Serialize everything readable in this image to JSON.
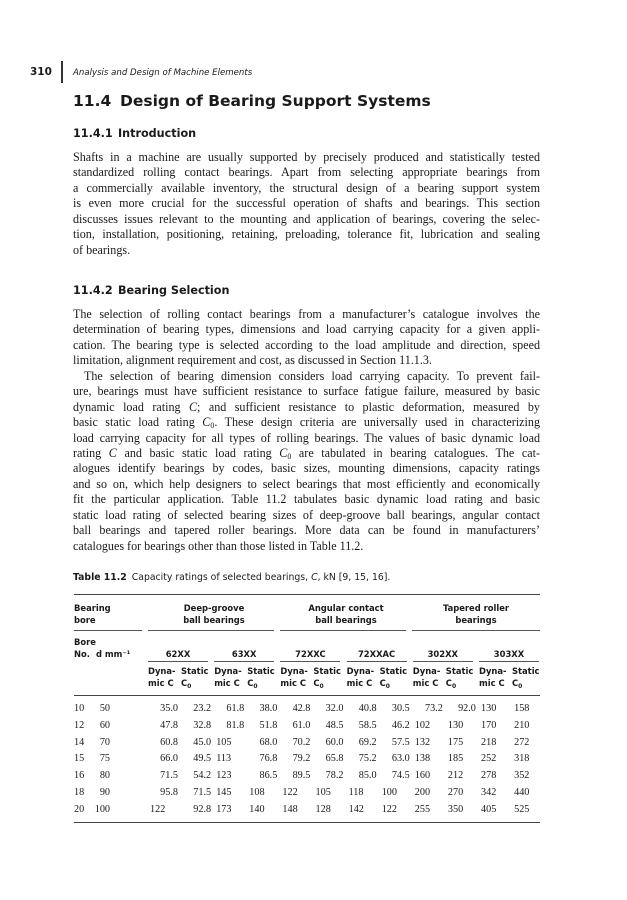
{
  "header": {
    "page_number": "310",
    "running_title": "Analysis and Design of Machine Elements"
  },
  "section": {
    "number": "11.4",
    "title": "Design of Bearing Support Systems"
  },
  "intro": {
    "number": "11.4.1",
    "title": "Introduction",
    "lines": [
      [
        "Shafts in a machine are usually supported by precisely produced and statistically tested"
      ],
      [
        "standardized rolling contact bearings. Apart from selecting appropriate bearings from"
      ],
      [
        "a commercially available inventory, the structural design of a bearing support system"
      ],
      [
        "is even more crucial for the successful operation of shafts and bearings. This section"
      ],
      [
        "discusses issues relevant to the mounting and application of bearings, covering the selec-"
      ],
      [
        "tion, installation, positioning, retaining, preloading, tolerance fit, lubrication and sealing"
      ],
      [
        "of bearings."
      ]
    ]
  },
  "selection": {
    "number": "11.4.2",
    "title": "Bearing Selection",
    "lines": [
      [
        "The selection of rolling contact bearings from a manufacturer’s catalogue involves the"
      ],
      [
        "determination of bearing types, dimensions and load carrying capacity for a given appli-"
      ],
      [
        "cation. The bearing type is selected according to the load amplitude and direction, speed"
      ],
      [
        "limitation, alignment requirement and cost, as discussed in Section 11.1.3."
      ],
      [
        "The selection of bearing dimension considers load carrying capacity. To prevent fail-"
      ],
      [
        "ure, bearings must have sufficient resistance to surface fatigue failure, measured by basic"
      ],
      [
        "dynamic load rating ",
        {
          "i": "C"
        },
        "; and sufficient resistance to plastic deformation, measured by"
      ],
      [
        "basic static load rating ",
        {
          "i": "C",
          "sub": "0"
        },
        ". These design criteria are universally used in characterizing"
      ],
      [
        "load carrying capacity for all types of rolling bearings. The values of basic dynamic load"
      ],
      [
        "rating ",
        {
          "i": "C"
        },
        " and basic static load rating ",
        {
          "i": "C",
          "sub": "0"
        },
        " are tabulated in bearing catalogues. The cat-"
      ],
      [
        "alogues identify bearings by codes, basic sizes, mounting dimensions, capacity ratings"
      ],
      [
        "and so on, which help designers to select bearings that most efficiently and economically"
      ],
      [
        "fit the particular application. Table 11.2 tabulates basic dynamic load rating and basic"
      ],
      [
        "static load rating of selected bearing sizes of deep-groove ball bearings, angular contact"
      ],
      [
        "ball bearings and tapered roller bearings. More data can be found in manufacturers’"
      ],
      [
        "catalogues for bearings other than those listed in Table 11.2."
      ]
    ]
  },
  "table": {
    "label": "Table 11.2",
    "caption_pre": "Capacity ratings of selected bearings, ",
    "caption_italic": "C",
    "caption_post": ", kN [9, 15, 16].",
    "group_headers": [
      "Bearing bore",
      "Deep-groove ball bearings",
      "Angular contact ball bearings",
      "Tapered roller bearings"
    ],
    "bore_no_label": "Bore No.",
    "d_label": "d mm⁻¹",
    "series": [
      "62XX",
      "63XX",
      "72XXC",
      "72XXAC",
      "302XX",
      "303XX"
    ],
    "dynamic_label": "Dyna- mic C",
    "static_label": "Static",
    "static_symbol": "C",
    "static_sub": "0",
    "rows": [
      [
        "10",
        "50",
        "35.0",
        "23.2",
        "61.8",
        "38.0",
        "42.8",
        "32.0",
        "40.8",
        "30.5",
        "73.2",
        "92.0",
        "130",
        "158"
      ],
      [
        "12",
        "60",
        "47.8",
        "32.8",
        "81.8",
        "51.8",
        "61.0",
        "48.5",
        "58.5",
        "46.2",
        "102",
        "130",
        "170",
        "210"
      ],
      [
        "14",
        "70",
        "60.8",
        "45.0",
        "105",
        "68.0",
        "70.2",
        "60.0",
        "69.2",
        "57.5",
        "132",
        "175",
        "218",
        "272"
      ],
      [
        "15",
        "75",
        "66.0",
        "49.5",
        "113",
        "76.8",
        "79.2",
        "65.8",
        "75.2",
        "63.0",
        "138",
        "185",
        "252",
        "318"
      ],
      [
        "16",
        "80",
        "71.5",
        "54.2",
        "123",
        "86.5",
        "89.5",
        "78.2",
        "85.0",
        "74.5",
        "160",
        "212",
        "278",
        "352"
      ],
      [
        "18",
        "90",
        "95.8",
        "71.5",
        "145",
        "108",
        "122",
        "105",
        "118",
        "100",
        "200",
        "270",
        "342",
        "440"
      ],
      [
        "20",
        "100",
        "122",
        "92.8",
        "173",
        "140",
        "148",
        "128",
        "142",
        "122",
        "255",
        "350",
        "405",
        "525"
      ]
    ]
  }
}
